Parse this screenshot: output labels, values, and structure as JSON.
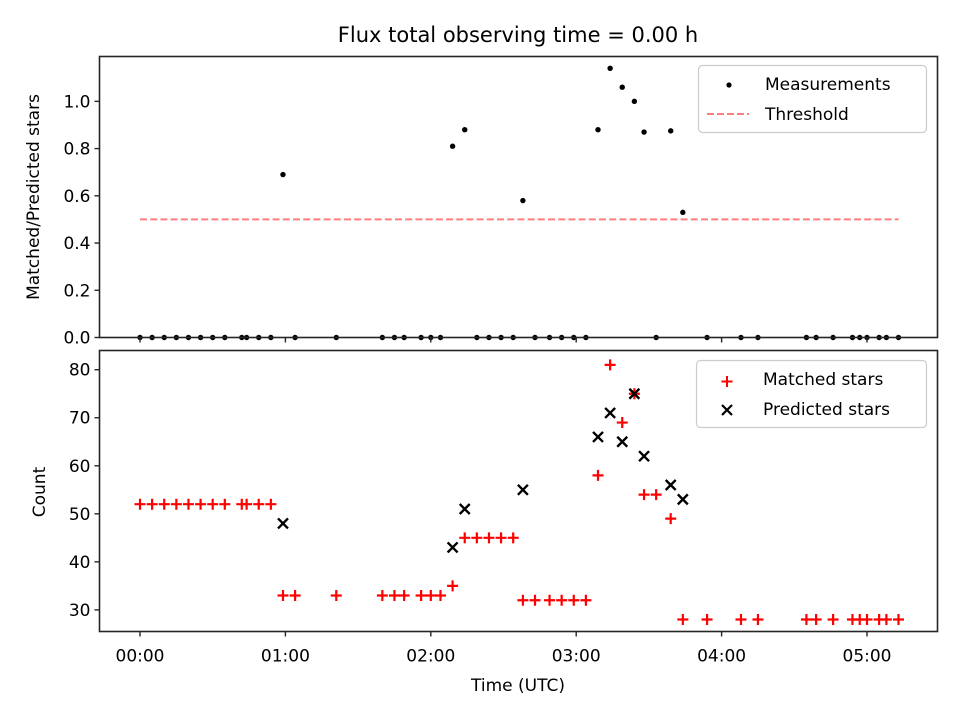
{
  "chart_data": [
    {
      "type": "scatter",
      "title": "Flux total observing time = 0.00 h",
      "xlabel": "",
      "ylabel": "Matched/Predicted stars",
      "ylim": [
        0,
        1.19
      ],
      "yticks": [
        0.0,
        0.2,
        0.4,
        0.6,
        0.8,
        1.0
      ],
      "ytick_labels": [
        "0.0",
        "0.2",
        "0.4",
        "0.6",
        "0.8",
        "1.0"
      ],
      "legend": {
        "position": "top-right",
        "entries": [
          "Measurements",
          "Threshold"
        ]
      },
      "threshold": {
        "name": "Threshold",
        "value": 0.5,
        "color": "#ff7f7f",
        "style": "dashed",
        "x_range": [
          "00:00",
          "05:13"
        ]
      },
      "series": [
        {
          "name": "Measurements",
          "color": "#000000",
          "marker": "dot",
          "points": [
            [
              "00:00",
              0
            ],
            [
              "00:05",
              0
            ],
            [
              "00:10",
              0
            ],
            [
              "00:15",
              0
            ],
            [
              "00:20",
              0
            ],
            [
              "00:25",
              0
            ],
            [
              "00:30",
              0
            ],
            [
              "00:35",
              0
            ],
            [
              "00:42",
              0
            ],
            [
              "00:44",
              0
            ],
            [
              "00:49",
              0
            ],
            [
              "00:54",
              0
            ],
            [
              "00:59",
              0.69
            ],
            [
              "01:04",
              0
            ],
            [
              "01:21",
              0
            ],
            [
              "01:40",
              0
            ],
            [
              "01:45",
              0
            ],
            [
              "01:49",
              0
            ],
            [
              "01:56",
              0
            ],
            [
              "02:00",
              0
            ],
            [
              "02:04",
              0
            ],
            [
              "02:09",
              0.81
            ],
            [
              "02:14",
              0.88
            ],
            [
              "02:19",
              0
            ],
            [
              "02:24",
              0
            ],
            [
              "02:29",
              0
            ],
            [
              "02:34",
              0
            ],
            [
              "02:38",
              0.58
            ],
            [
              "02:43",
              0
            ],
            [
              "02:49",
              0
            ],
            [
              "02:54",
              0
            ],
            [
              "02:59",
              0
            ],
            [
              "03:04",
              0
            ],
            [
              "03:09",
              0.88
            ],
            [
              "03:14",
              1.14
            ],
            [
              "03:19",
              1.06
            ],
            [
              "03:24",
              1.0
            ],
            [
              "03:28",
              0.87
            ],
            [
              "03:33",
              0
            ],
            [
              "03:39",
              0.875
            ],
            [
              "03:44",
              0.53
            ],
            [
              "03:54",
              0
            ],
            [
              "04:08",
              0
            ],
            [
              "04:15",
              0
            ],
            [
              "04:35",
              0
            ],
            [
              "04:39",
              0
            ],
            [
              "04:46",
              0
            ],
            [
              "04:54",
              0
            ],
            [
              "04:57",
              0
            ],
            [
              "05:00",
              0
            ],
            [
              "05:05",
              0
            ],
            [
              "05:08",
              0
            ],
            [
              "05:13",
              0
            ]
          ]
        }
      ]
    },
    {
      "type": "scatter",
      "title": "",
      "xlabel": "Time (UTC)",
      "ylabel": "Count",
      "ylim": [
        25.5,
        84
      ],
      "yticks": [
        30,
        40,
        50,
        60,
        70,
        80
      ],
      "ytick_labels": [
        "30",
        "40",
        "50",
        "60",
        "70",
        "80"
      ],
      "xlim": [
        "-00:17",
        "05:28"
      ],
      "xticks": [
        "00:00",
        "01:00",
        "02:00",
        "03:00",
        "04:00",
        "05:00"
      ],
      "legend": {
        "position": "top-right",
        "entries": [
          "Matched stars",
          "Predicted stars"
        ]
      },
      "series": [
        {
          "name": "Matched stars",
          "color": "#ff0000",
          "marker": "plus",
          "points": [
            [
              "00:00",
              52
            ],
            [
              "00:05",
              52
            ],
            [
              "00:10",
              52
            ],
            [
              "00:15",
              52
            ],
            [
              "00:20",
              52
            ],
            [
              "00:25",
              52
            ],
            [
              "00:30",
              52
            ],
            [
              "00:35",
              52
            ],
            [
              "00:42",
              52
            ],
            [
              "00:44",
              52
            ],
            [
              "00:49",
              52
            ],
            [
              "00:54",
              52
            ],
            [
              "00:59",
              33
            ],
            [
              "01:04",
              33
            ],
            [
              "01:21",
              33
            ],
            [
              "01:40",
              33
            ],
            [
              "01:45",
              33
            ],
            [
              "01:49",
              33
            ],
            [
              "01:56",
              33
            ],
            [
              "02:00",
              33
            ],
            [
              "02:04",
              33
            ],
            [
              "02:09",
              35
            ],
            [
              "02:14",
              45
            ],
            [
              "02:19",
              45
            ],
            [
              "02:24",
              45
            ],
            [
              "02:29",
              45
            ],
            [
              "02:34",
              45
            ],
            [
              "02:38",
              32
            ],
            [
              "02:43",
              32
            ],
            [
              "02:49",
              32
            ],
            [
              "02:54",
              32
            ],
            [
              "02:59",
              32
            ],
            [
              "03:04",
              32
            ],
            [
              "03:09",
              58
            ],
            [
              "03:14",
              81
            ],
            [
              "03:19",
              69
            ],
            [
              "03:24",
              75
            ],
            [
              "03:28",
              54
            ],
            [
              "03:33",
              54
            ],
            [
              "03:39",
              49
            ],
            [
              "03:44",
              28
            ],
            [
              "03:54",
              28
            ],
            [
              "04:08",
              28
            ],
            [
              "04:15",
              28
            ],
            [
              "04:35",
              28
            ],
            [
              "04:39",
              28
            ],
            [
              "04:46",
              28
            ],
            [
              "04:54",
              28
            ],
            [
              "04:57",
              28
            ],
            [
              "05:00",
              28
            ],
            [
              "05:05",
              28
            ],
            [
              "05:08",
              28
            ],
            [
              "05:13",
              28
            ]
          ]
        },
        {
          "name": "Predicted stars",
          "color": "#000000",
          "marker": "x",
          "points": [
            [
              "00:59",
              48
            ],
            [
              "02:09",
              43
            ],
            [
              "02:14",
              51
            ],
            [
              "02:38",
              55
            ],
            [
              "03:09",
              66
            ],
            [
              "03:14",
              71
            ],
            [
              "03:19",
              65
            ],
            [
              "03:24",
              75
            ],
            [
              "03:28",
              62
            ],
            [
              "03:39",
              56
            ],
            [
              "03:44",
              53
            ]
          ]
        }
      ]
    }
  ]
}
